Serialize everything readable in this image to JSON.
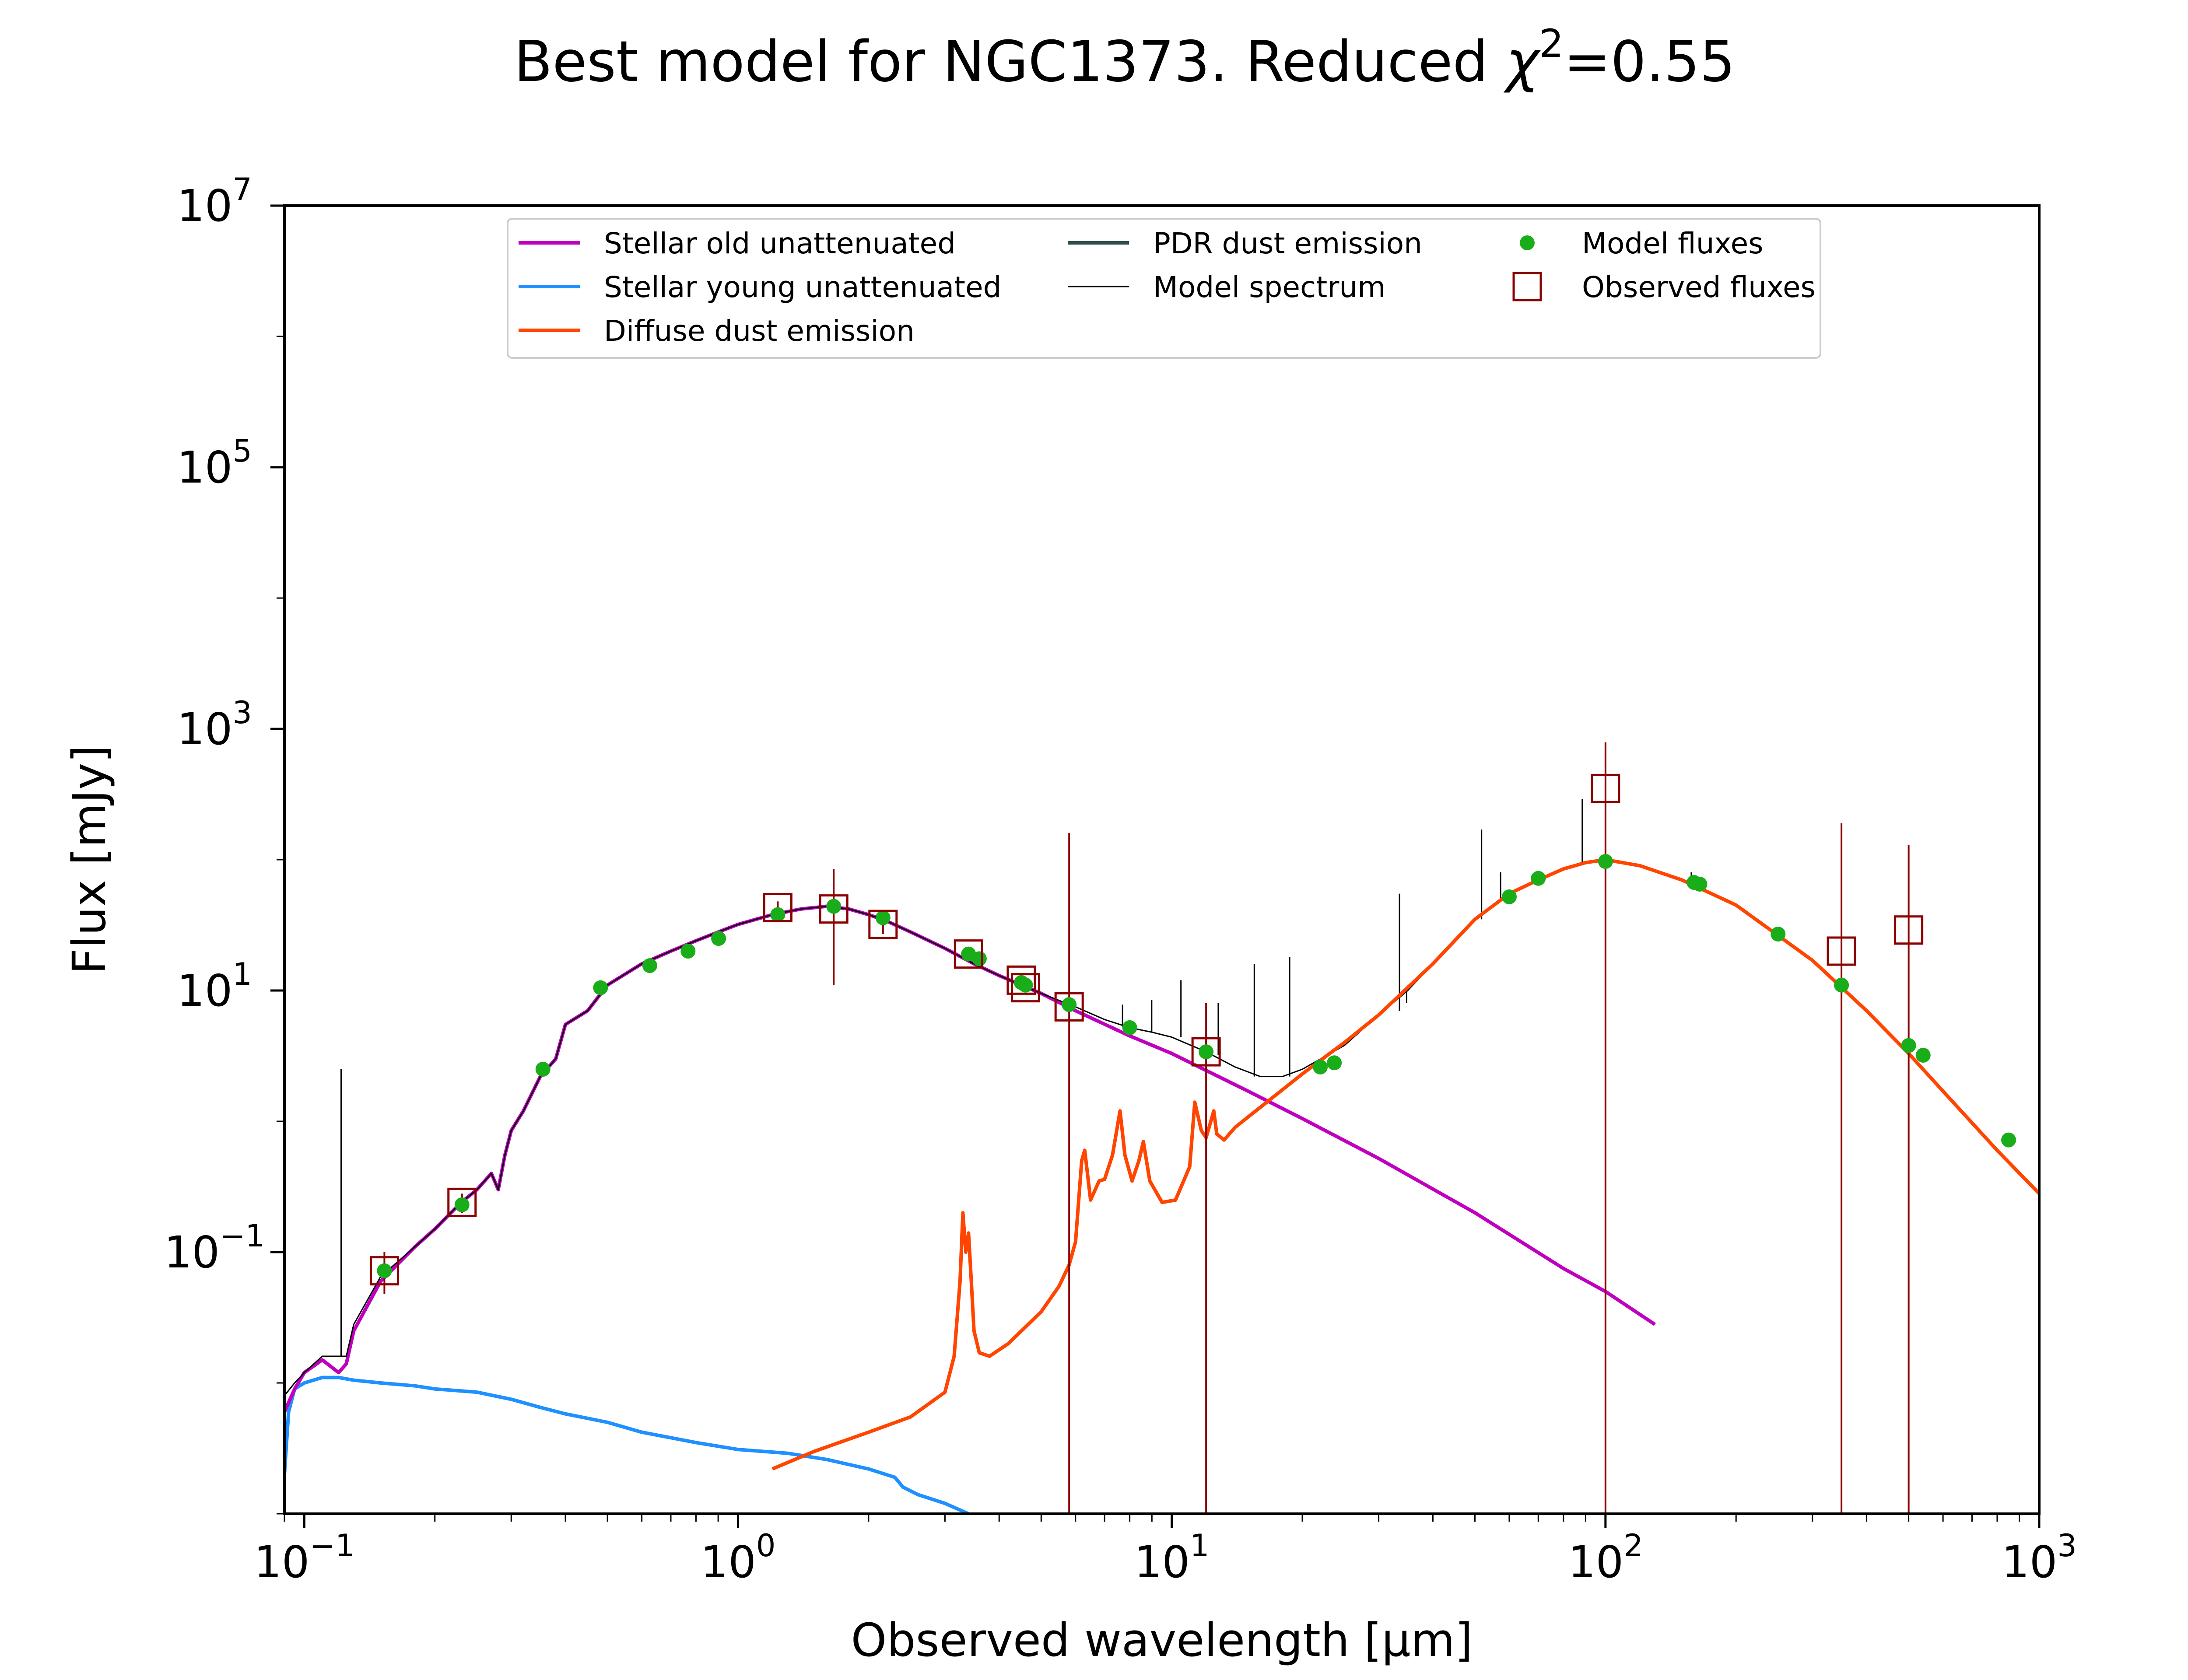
{
  "chart_data": {
    "type": "line",
    "title": "Best model for NGC1373. Reduced χ²=0.55",
    "title_main": "Best model for NGC1373. Reduced ",
    "title_chi": "χ",
    "title_sup": "2",
    "title_end": "=0.55",
    "xlabel": "Observed wavelength [μm]",
    "ylabel": "Flux [mJy]",
    "x_scale": "log",
    "y_scale": "log",
    "xlim": [
      0.09,
      1000
    ],
    "ylim": [
      0.001,
      10000000
    ],
    "x_ticks": [
      {
        "value": 0.1,
        "base": "10",
        "exp": "−1"
      },
      {
        "value": 1,
        "base": "10",
        "exp": "0"
      },
      {
        "value": 10,
        "base": "10",
        "exp": "1"
      },
      {
        "value": 100,
        "base": "10",
        "exp": "2"
      },
      {
        "value": 1000,
        "base": "10",
        "exp": "3"
      }
    ],
    "y_ticks": [
      {
        "value": 0.1,
        "base": "10",
        "exp": "−1"
      },
      {
        "value": 10,
        "base": "10",
        "exp": "1"
      },
      {
        "value": 1000,
        "base": "10",
        "exp": "3"
      },
      {
        "value": 100000,
        "base": "10",
        "exp": "5"
      },
      {
        "value": 10000000,
        "base": "10",
        "exp": "7"
      }
    ],
    "legend_position": "top",
    "legend": [
      {
        "label": "Stellar old unattenuated",
        "color": "#bf00bf",
        "kind": "line"
      },
      {
        "label": "Stellar young unattenuated",
        "color": "#1e90ff",
        "kind": "line"
      },
      {
        "label": "Diffuse dust emission",
        "color": "#ff4500",
        "kind": "line"
      },
      {
        "label": "PDR dust emission",
        "color": "#2f4f4f",
        "kind": "line"
      },
      {
        "label": "Model spectrum",
        "color": "#000000",
        "kind": "thinline"
      },
      {
        "label": "Model fluxes",
        "color": "#1aad1a",
        "kind": "dot"
      },
      {
        "label": "Observed fluxes",
        "color": "#8b0000",
        "kind": "square"
      }
    ],
    "series": [
      {
        "name": "Stellar old unattenuated",
        "color": "#bf00bf",
        "x": [
          0.09,
          0.095,
          0.1,
          0.11,
          0.12,
          0.125,
          0.13,
          0.15,
          0.18,
          0.2,
          0.23,
          0.25,
          0.27,
          0.28,
          0.29,
          0.3,
          0.32,
          0.35,
          0.38,
          0.4,
          0.45,
          0.5,
          0.6,
          0.7,
          0.8,
          0.9,
          1.0,
          1.2,
          1.4,
          1.6,
          1.8,
          2.0,
          2.2,
          2.5,
          3.0,
          3.5,
          4.0,
          5.0,
          6.0,
          8.0,
          10.0,
          15.0,
          20.0,
          30.0,
          50.0,
          80.0,
          100.0,
          130.0
        ],
        "y": [
          0.006,
          0.009,
          0.012,
          0.015,
          0.012,
          0.014,
          0.025,
          0.06,
          0.11,
          0.15,
          0.24,
          0.3,
          0.4,
          0.3,
          0.55,
          0.85,
          1.2,
          2.2,
          3.0,
          5.5,
          7.0,
          11,
          16,
          20,
          24,
          28,
          32,
          38,
          42,
          44,
          42,
          38,
          34,
          28,
          21,
          16,
          13,
          9.5,
          7.0,
          4.5,
          3.3,
          1.7,
          1.05,
          0.52,
          0.2,
          0.075,
          0.05,
          0.028
        ]
      },
      {
        "name": "Stellar young unattenuated",
        "color": "#1e90ff",
        "x": [
          0.09,
          0.092,
          0.095,
          0.1,
          0.11,
          0.12,
          0.13,
          0.15,
          0.18,
          0.2,
          0.25,
          0.3,
          0.35,
          0.4,
          0.5,
          0.6,
          0.8,
          1.0,
          1.3,
          1.6,
          2.0,
          2.3,
          2.4,
          2.6,
          3.0,
          3.4
        ],
        "y": [
          0.002,
          0.006,
          0.009,
          0.01,
          0.011,
          0.011,
          0.0105,
          0.01,
          0.0095,
          0.009,
          0.0085,
          0.0075,
          0.0065,
          0.0058,
          0.005,
          0.0042,
          0.0035,
          0.0031,
          0.0029,
          0.0026,
          0.0022,
          0.0019,
          0.0016,
          0.0014,
          0.0012,
          0.001
        ]
      },
      {
        "name": "Diffuse dust emission",
        "color": "#ff4500",
        "x": [
          1.2,
          1.5,
          2.0,
          2.5,
          3.0,
          3.15,
          3.25,
          3.3,
          3.35,
          3.4,
          3.45,
          3.5,
          3.6,
          3.8,
          4.2,
          5.0,
          5.5,
          5.8,
          6.0,
          6.2,
          6.3,
          6.5,
          6.8,
          7.0,
          7.3,
          7.6,
          7.8,
          8.1,
          8.4,
          8.6,
          8.9,
          9.5,
          10.2,
          11.0,
          11.3,
          11.7,
          12.0,
          12.5,
          12.7,
          13.2,
          14.0,
          17.0,
          20.0,
          25.0,
          30.0,
          40.0,
          50.0,
          60.0,
          70.0,
          80.0,
          90.0,
          100.0,
          120.0,
          150.0,
          200.0,
          300.0,
          400.0,
          500.0,
          600.0,
          800.0,
          1000.0
        ],
        "y": [
          0.0022,
          0.003,
          0.0042,
          0.0055,
          0.0085,
          0.016,
          0.06,
          0.2,
          0.1,
          0.14,
          0.06,
          0.025,
          0.017,
          0.016,
          0.02,
          0.035,
          0.055,
          0.08,
          0.12,
          0.5,
          0.6,
          0.25,
          0.35,
          0.36,
          0.55,
          1.2,
          0.55,
          0.35,
          0.5,
          0.7,
          0.35,
          0.24,
          0.25,
          0.45,
          1.4,
          0.85,
          0.75,
          1.2,
          0.8,
          0.72,
          0.9,
          1.5,
          2.3,
          4.0,
          6.5,
          16,
          35,
          55,
          70,
          85,
          95,
          100,
          90,
          70,
          45,
          17,
          7.0,
          3.3,
          1.7,
          0.6,
          0.28
        ]
      },
      {
        "name": "Model spectrum",
        "color": "#000000",
        "x": [
          0.09,
          0.095,
          0.1,
          0.11,
          0.12,
          0.125,
          0.13,
          0.15,
          0.18,
          0.2,
          0.23,
          0.25,
          0.27,
          0.28,
          0.29,
          0.3,
          0.32,
          0.35,
          0.38,
          0.4,
          0.45,
          0.5,
          0.6,
          0.7,
          0.8,
          0.9,
          1.0,
          1.2,
          1.4,
          1.6,
          1.8,
          2.0,
          2.2,
          2.5,
          3.0,
          3.5,
          4.0,
          5.0,
          6.0,
          7.0,
          8.0,
          9.0,
          10.0,
          12.0,
          14.0,
          16.0,
          18.0,
          20.0,
          25.0,
          30.0,
          35.0,
          40.0,
          50.0,
          60.0,
          70.0,
          80.0,
          90.0,
          100.0,
          120.0,
          150.0,
          200.0,
          300.0,
          400.0,
          500.0,
          600.0,
          800.0,
          1000.0
        ],
        "y": [
          0.008,
          0.01,
          0.012,
          0.016,
          0.016,
          0.016,
          0.028,
          0.065,
          0.11,
          0.15,
          0.24,
          0.3,
          0.4,
          0.3,
          0.55,
          0.85,
          1.2,
          2.2,
          3.0,
          5.5,
          7.0,
          11,
          16,
          20,
          24,
          28,
          32,
          38,
          42,
          44,
          42,
          38,
          34,
          28,
          21,
          16,
          13,
          9.5,
          7.5,
          6.0,
          5.2,
          4.8,
          4.4,
          3.4,
          2.6,
          2.2,
          2.2,
          2.5,
          3.8,
          6.5,
          10,
          16,
          35,
          55,
          70,
          85,
          95,
          100,
          90,
          70,
          45,
          17,
          7.0,
          3.3,
          1.7,
          0.6,
          0.28
        ]
      }
    ],
    "emission_lines": [
      {
        "x": 0.1216,
        "y_base": 0.016,
        "y_top": 2.5
      },
      {
        "x": 7.7,
        "y_base": 5.3,
        "y_top": 7.8
      },
      {
        "x": 8.99,
        "y_base": 4.8,
        "y_top": 8.5
      },
      {
        "x": 10.5,
        "y_base": 4.4,
        "y_top": 12
      },
      {
        "x": 12.8,
        "y_base": 3.2,
        "y_top": 8.0
      },
      {
        "x": 15.5,
        "y_base": 2.2,
        "y_top": 16
      },
      {
        "x": 18.7,
        "y_base": 2.2,
        "y_top": 18
      },
      {
        "x": 33.5,
        "y_base": 7.0,
        "y_top": 55
      },
      {
        "x": 34.8,
        "y_base": 8.0,
        "y_top": 10
      },
      {
        "x": 51.8,
        "y_base": 35,
        "y_top": 170
      },
      {
        "x": 57.3,
        "y_base": 50,
        "y_top": 80
      },
      {
        "x": 88.4,
        "y_base": 95,
        "y_top": 290
      },
      {
        "x": 121.9,
        "y_base": 95,
        "y_top": 95
      },
      {
        "x": 157.7,
        "y_base": 65,
        "y_top": 80
      }
    ],
    "model_fluxes": {
      "color": "#1aad1a",
      "x": [
        0.153,
        0.231,
        0.355,
        0.482,
        0.626,
        0.767,
        0.902,
        1.235,
        1.662,
        2.159,
        3.4,
        3.6,
        4.5,
        4.6,
        5.8,
        8.0,
        12.0,
        22.0,
        23.7,
        60.0,
        70.0,
        100.0,
        160.0,
        165.0,
        250.0,
        350.0,
        500.0,
        540.0,
        850.0
      ],
      "y": [
        0.072,
        0.23,
        2.5,
        10.5,
        15.5,
        20.0,
        25.0,
        38.0,
        44.0,
        36.0,
        19.0,
        17.5,
        11.5,
        11.0,
        7.8,
        5.2,
        3.4,
        2.6,
        2.8,
        52.0,
        72.0,
        97.0,
        67.0,
        65.0,
        27.0,
        11.0,
        3.8,
        3.2,
        0.72
      ]
    },
    "observed_fluxes": {
      "color": "#8b0000",
      "x": [
        0.153,
        0.231,
        1.235,
        1.662,
        2.159,
        3.4,
        4.5,
        4.6,
        5.8,
        12.0,
        100.0,
        350.0,
        500.0
      ],
      "y": [
        0.072,
        0.24,
        43.0,
        42.0,
        32.0,
        19.0,
        12.0,
        10.5,
        7.5,
        3.4,
        350.0,
        20.0,
        29.0
      ],
      "err_low": [
        0.048,
        0.2,
        37.0,
        11.0,
        27.0,
        19.0,
        12.0,
        10.5,
        0.001,
        0.001,
        0.001,
        0.001,
        0.001
      ],
      "err_high": [
        0.1,
        0.28,
        48.0,
        85.0,
        37.0,
        19.0,
        12.0,
        10.5,
        160.0,
        8.0,
        790.0,
        190.0,
        130.0
      ]
    }
  }
}
